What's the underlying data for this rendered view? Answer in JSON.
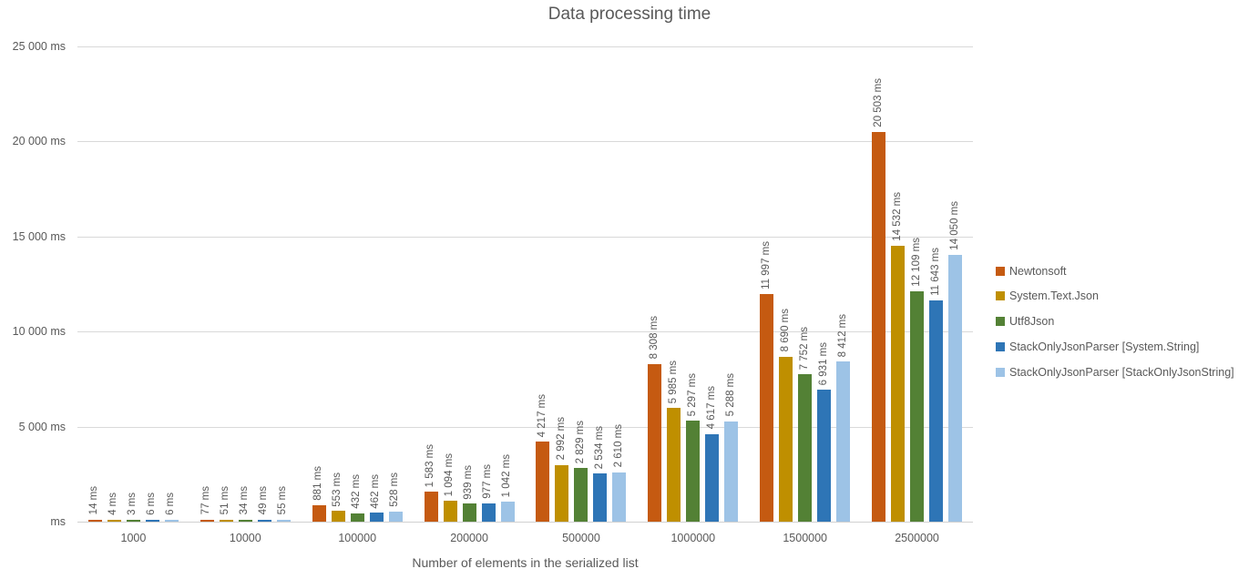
{
  "chart_data": {
    "type": "bar",
    "title": "Data processing time",
    "xlabel": "Number of elements in the serialized list",
    "ylabel": "ms",
    "ylim": [
      0,
      25000
    ],
    "ytick_step": 5000,
    "yticks": [
      "ms",
      "5 000 ms",
      "10 000 ms",
      "15 000 ms",
      "20 000 ms",
      "25 000 ms"
    ],
    "grid": true,
    "legend_position": "right",
    "categories": [
      "1000",
      "10000",
      "100000",
      "200000",
      "500000",
      "1000000",
      "1500000",
      "2500000"
    ],
    "series": [
      {
        "name": "Newtonsoft",
        "color": "#C55A11",
        "values": [
          14,
          77,
          881,
          1583,
          4217,
          8308,
          11997,
          20503
        ],
        "labels": [
          "14 ms",
          "77 ms",
          "881 ms",
          "1 583 ms",
          "4 217 ms",
          "8 308 ms",
          "11 997 ms",
          "20 503 ms"
        ]
      },
      {
        "name": "System.Text.Json",
        "color": "#BF8F00",
        "values": [
          4,
          51,
          553,
          1094,
          2992,
          5985,
          8690,
          14532
        ],
        "labels": [
          "4 ms",
          "51 ms",
          "553 ms",
          "1 094 ms",
          "2 992 ms",
          "5 985 ms",
          "8 690 ms",
          "14 532 ms"
        ]
      },
      {
        "name": "Utf8Json",
        "color": "#538135",
        "values": [
          3,
          34,
          432,
          939,
          2829,
          5297,
          7752,
          12109
        ],
        "labels": [
          "3 ms",
          "34 ms",
          "432 ms",
          "939 ms",
          "2 829 ms",
          "5 297 ms",
          "7 752 ms",
          "12 109 ms"
        ]
      },
      {
        "name": "StackOnlyJsonParser [System.String]",
        "color": "#2E75B6",
        "values": [
          6,
          49,
          462,
          977,
          2534,
          4617,
          6931,
          11643
        ],
        "labels": [
          "6 ms",
          "49 ms",
          "462 ms",
          "977 ms",
          "2 534 ms",
          "4 617 ms",
          "6 931 ms",
          "11 643 ms"
        ]
      },
      {
        "name": "StackOnlyJsonParser [StackOnlyJsonString]",
        "color": "#9DC3E6",
        "values": [
          6,
          55,
          528,
          1042,
          2610,
          5288,
          8412,
          14050
        ],
        "labels": [
          "6 ms",
          "55 ms",
          "528 ms",
          "1 042 ms",
          "2 610 ms",
          "5 288 ms",
          "8 412 ms",
          "14 050 ms"
        ]
      }
    ]
  }
}
